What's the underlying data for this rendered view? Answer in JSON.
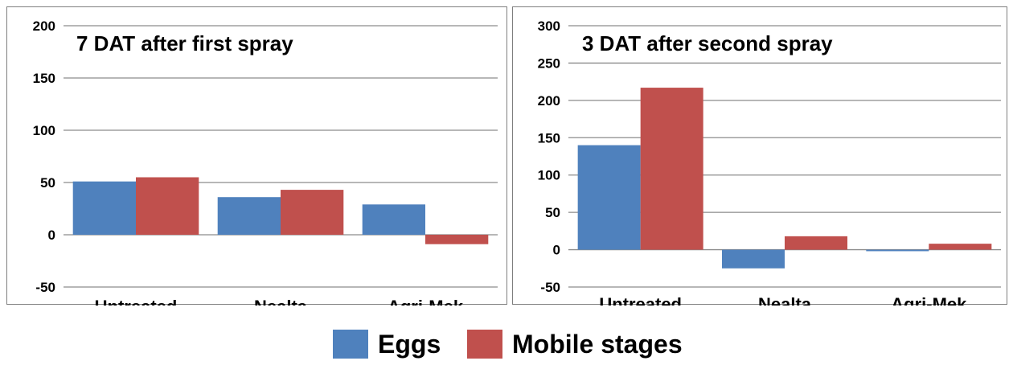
{
  "colors": {
    "eggs": "#4f81bd",
    "mobile": "#c0504d",
    "grid": "#8c8c8c",
    "border": "#7f7f7f"
  },
  "legend": {
    "items": [
      {
        "label": "Eggs"
      },
      {
        "label": "Mobile stages"
      }
    ]
  },
  "chart_data": [
    {
      "type": "bar",
      "title": "7 DAT after first spray",
      "categories": [
        "Untreated",
        "Nealta",
        "Agri-Mek"
      ],
      "series": [
        {
          "name": "Eggs",
          "values": [
            51,
            36,
            29
          ]
        },
        {
          "name": "Mobile stages",
          "values": [
            55,
            43,
            -9
          ]
        }
      ],
      "ylim": [
        -50,
        200
      ],
      "yticks": [
        -50,
        0,
        50,
        100,
        150,
        200
      ],
      "ytick_labels": [
        "-50",
        "0",
        "50",
        "100",
        "150",
        "200"
      ],
      "grid": true,
      "legend_position": "bottom"
    },
    {
      "type": "bar",
      "title": "3 DAT after second spray",
      "categories": [
        "Untreated",
        "Nealta",
        "Agri-Mek"
      ],
      "series": [
        {
          "name": "Eggs",
          "values": [
            140,
            -25,
            -2
          ]
        },
        {
          "name": "Mobile stages",
          "values": [
            217,
            18,
            8
          ]
        }
      ],
      "ylim": [
        -50,
        300
      ],
      "yticks": [
        -50,
        0,
        50,
        100,
        150,
        200,
        250,
        300
      ],
      "ytick_labels": [
        "-50",
        "0",
        "50",
        "100",
        "150",
        "200",
        "250",
        "300"
      ],
      "grid": true,
      "legend_position": "bottom"
    }
  ]
}
